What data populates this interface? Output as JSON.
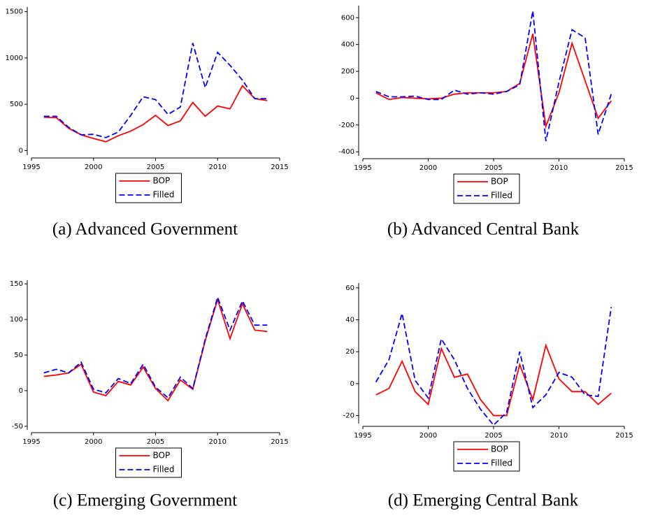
{
  "chart_data": [
    {
      "type": "line",
      "caption": "(a) Advanced Government",
      "x": [
        1996,
        1997,
        1998,
        1999,
        2000,
        2001,
        2002,
        2003,
        2004,
        2005,
        2006,
        2007,
        2008,
        2009,
        2010,
        2011,
        2012,
        2013,
        2014
      ],
      "series": [
        {
          "name": "BOP",
          "color": "#ff0000",
          "line_style": "solid",
          "values": [
            360,
            355,
            240,
            170,
            130,
            95,
            160,
            210,
            280,
            380,
            270,
            320,
            520,
            370,
            480,
            450,
            700,
            560,
            540
          ]
        },
        {
          "name": "Filled",
          "color": "#0000ff",
          "line_style": "dashed",
          "values": [
            370,
            370,
            250,
            170,
            175,
            140,
            200,
            380,
            580,
            550,
            390,
            470,
            1160,
            680,
            1060,
            920,
            760,
            560,
            560
          ]
        }
      ],
      "xlim": [
        1995,
        2015
      ],
      "xticks": [
        1995,
        2000,
        2005,
        2010,
        2015
      ],
      "ylim": [
        -50,
        1550
      ],
      "yticks": [
        0,
        500,
        1000,
        1500
      ],
      "legend": "bottom"
    },
    {
      "type": "line",
      "caption": "(b) Advanced Central Bank",
      "x": [
        1996,
        1997,
        1998,
        1999,
        2000,
        2001,
        2002,
        2003,
        2004,
        2005,
        2006,
        2007,
        2008,
        2009,
        2010,
        2011,
        2012,
        2013,
        2014
      ],
      "series": [
        {
          "name": "BOP",
          "color": "#ff0000",
          "line_style": "solid",
          "values": [
            40,
            -10,
            5,
            0,
            -5,
            0,
            30,
            40,
            40,
            40,
            50,
            110,
            480,
            -210,
            40,
            410,
            130,
            -150,
            -20
          ]
        },
        {
          "name": "Filled",
          "color": "#0000ff",
          "line_style": "dashed",
          "values": [
            50,
            10,
            10,
            15,
            -10,
            -10,
            60,
            30,
            40,
            30,
            50,
            100,
            650,
            -320,
            120,
            510,
            450,
            -270,
            30
          ]
        }
      ],
      "xlim": [
        1995,
        2015
      ],
      "xticks": [
        1995,
        2000,
        2005,
        2010,
        2015
      ],
      "ylim": [
        -430,
        690
      ],
      "yticks": [
        -400,
        -200,
        0,
        200,
        400,
        600
      ],
      "legend": "bottom"
    },
    {
      "type": "line",
      "caption": "(c) Emerging Government",
      "x": [
        1996,
        1997,
        1998,
        1999,
        2000,
        2001,
        2002,
        2003,
        2004,
        2005,
        2006,
        2007,
        2008,
        2009,
        2010,
        2011,
        2012,
        2013,
        2014
      ],
      "series": [
        {
          "name": "BOP",
          "color": "#ff0000",
          "line_style": "solid",
          "values": [
            20,
            22,
            25,
            37,
            -2,
            -7,
            13,
            8,
            33,
            3,
            -14,
            15,
            2,
            70,
            128,
            73,
            122,
            85,
            83
          ]
        },
        {
          "name": "Filled",
          "color": "#0000ff",
          "line_style": "dashed",
          "values": [
            25,
            30,
            25,
            40,
            2,
            -3,
            17,
            10,
            37,
            5,
            -10,
            19,
            3,
            72,
            131,
            85,
            126,
            92,
            92
          ]
        }
      ],
      "xlim": [
        1995,
        2015
      ],
      "xticks": [
        1995,
        2000,
        2005,
        2010,
        2015
      ],
      "ylim": [
        -55,
        155
      ],
      "yticks": [
        -50,
        0,
        50,
        100,
        150
      ],
      "legend": "bottom"
    },
    {
      "type": "line",
      "caption": "(d) Emerging Central Bank",
      "x": [
        1996,
        1997,
        1998,
        1999,
        2000,
        2001,
        2002,
        2003,
        2004,
        2005,
        2006,
        2007,
        2008,
        2009,
        2010,
        2011,
        2012,
        2013,
        2014
      ],
      "series": [
        {
          "name": "BOP",
          "color": "#ff0000",
          "line_style": "solid",
          "values": [
            -7,
            -3,
            14,
            -5,
            -13,
            22,
            4,
            6,
            -10,
            -20,
            -20,
            12,
            -10,
            24,
            3,
            -5,
            -5,
            -13,
            -6
          ]
        },
        {
          "name": "Filled",
          "color": "#0000ff",
          "line_style": "dashed",
          "values": [
            1,
            15,
            44,
            2,
            -9,
            28,
            15,
            -3,
            -16,
            -26,
            -18,
            20,
            -15,
            -7,
            7,
            4,
            -7,
            -8,
            48
          ]
        }
      ],
      "xlim": [
        1995,
        2015
      ],
      "xticks": [
        1995,
        2000,
        2005,
        2010,
        2015
      ],
      "ylim": [
        -25,
        63
      ],
      "yticks": [
        -20,
        0,
        20,
        40,
        60
      ],
      "legend": "bottom"
    }
  ]
}
